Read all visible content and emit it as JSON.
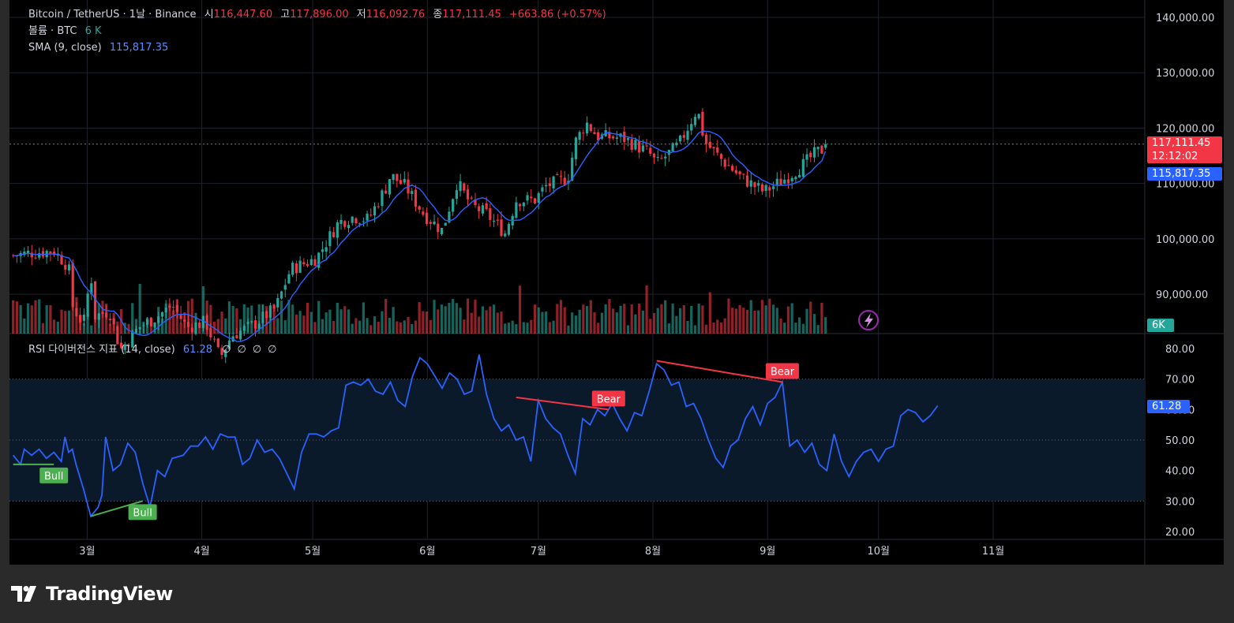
{
  "legend": {
    "symbol": "Bitcoin / TetherUS · 1날 · Binance",
    "open_label": "시",
    "open": "116,447.60",
    "high_label": "고",
    "high": "117,896.00",
    "low_label": "저",
    "low": "116,092.76",
    "close_label": "종",
    "close": "117,111.45",
    "change": "+663.86 (+0.57%)",
    "volume_label": "볼륨 · BTC",
    "volume_value": "6 K",
    "sma_label": "SMA (9, close)",
    "sma_value": "115,817.35",
    "rsi_label": "RSI 다이버전스 지표 (14, close)",
    "rsi_value": "61.28",
    "rsi_toggles": [
      "∅",
      "∅",
      "∅",
      "∅"
    ]
  },
  "price_tags": {
    "last_price": "117,111.45",
    "countdown": "12:12:02",
    "sma": "115,817.35",
    "volume": "6K",
    "rsi": "61.28"
  },
  "colors": {
    "up": "#26a69a",
    "down": "#f23645",
    "sma": "#2962ff",
    "rsi": "#2962ff",
    "bull": "#4caf50",
    "bear": "#f23645",
    "background": "#000000",
    "grid": "#1e222d"
  },
  "brand": {
    "name": "TradingView"
  },
  "chart_data": [
    {
      "type": "candlestick",
      "title": "Bitcoin / TetherUS · 1날 · Binance",
      "x_ticks": [
        "3월",
        "4월",
        "5월",
        "6월",
        "7월",
        "8월",
        "9월",
        "10월",
        "11월"
      ],
      "y_ticks": [
        "90,000.00",
        "100,000.00",
        "110,000.00",
        "120,000.00",
        "130,000.00",
        "140,000.00"
      ],
      "ylim": [
        84000,
        142000
      ],
      "grid": true,
      "series": [
        {
          "name": "SMA (9, close)",
          "type": "line"
        }
      ],
      "close_path": [
        [
          "02-09",
          97000
        ],
        [
          "02-14",
          97500
        ],
        [
          "02-20",
          97800
        ],
        [
          "02-24",
          95000
        ],
        [
          "02-25",
          88000
        ],
        [
          "02-28",
          84500
        ],
        [
          "03-02",
          94000
        ],
        [
          "03-03",
          86000
        ],
        [
          "03-07",
          87000
        ],
        [
          "03-10",
          80000
        ],
        [
          "03-15",
          84000
        ],
        [
          "03-20",
          86000
        ],
        [
          "03-24",
          88000
        ],
        [
          "03-28",
          84000
        ],
        [
          "04-02",
          85000
        ],
        [
          "04-06",
          78500
        ],
        [
          "04-09",
          82500
        ],
        [
          "04-15",
          84500
        ],
        [
          "04-21",
          87500
        ],
        [
          "04-25",
          94500
        ],
        [
          "05-02",
          96500
        ],
        [
          "05-08",
          103000
        ],
        [
          "05-12",
          104000
        ],
        [
          "05-16",
          103500
        ],
        [
          "05-21",
          109500
        ],
        [
          "05-22",
          111500
        ],
        [
          "05-26",
          109500
        ],
        [
          "05-31",
          104500
        ],
        [
          "06-05",
          101500
        ],
        [
          "06-09",
          110200
        ],
        [
          "06-13",
          106000
        ],
        [
          "06-17",
          104500
        ],
        [
          "06-22",
          101000
        ],
        [
          "06-25",
          107000
        ],
        [
          "06-30",
          107000
        ],
        [
          "07-03",
          109500
        ],
        [
          "07-09",
          111000
        ],
        [
          "07-11",
          117500
        ],
        [
          "07-14",
          121000
        ],
        [
          "07-17",
          118500
        ],
        [
          "07-24",
          118200
        ],
        [
          "07-31",
          115500
        ],
        [
          "08-02",
          113500
        ],
        [
          "08-08",
          117000
        ],
        [
          "08-13",
          123500
        ],
        [
          "08-15",
          117500
        ],
        [
          "08-20",
          114000
        ],
        [
          "08-25",
          111000
        ],
        [
          "08-31",
          108500
        ],
        [
          "09-05",
          110500
        ],
        [
          "09-10",
          113000
        ],
        [
          "09-14",
          115500
        ],
        [
          "09-17",
          116500
        ]
      ],
      "last": {
        "open": 116447.6,
        "high": 117896.0,
        "low": 116092.76,
        "close": 117111.45
      },
      "sma_last": 115817.35
    },
    {
      "type": "bar",
      "title": "볼륨 · BTC",
      "last_value": "6 K"
    },
    {
      "type": "line",
      "title": "RSI 다이버전스 지표 (14, close)",
      "y_ticks": [
        "20.00",
        "30.00",
        "40.00",
        "50.00",
        "60.00",
        "70.00",
        "80.00"
      ],
      "ylim": [
        17,
        82
      ],
      "overbought": 70,
      "oversold": 30,
      "last_value": 61.28,
      "series": [
        {
          "name": "RSI",
          "points": [
            [
              "02-09",
              45
            ],
            [
              "02-11",
              42
            ],
            [
              "02-12",
              47
            ],
            [
              "02-14",
              45
            ],
            [
              "02-16",
              47
            ],
            [
              "02-18",
              44
            ],
            [
              "02-20",
              46
            ],
            [
              "02-22",
              43
            ],
            [
              "02-23",
              51
            ],
            [
              "02-24",
              46
            ],
            [
              "02-25",
              47
            ],
            [
              "02-26",
              42
            ],
            [
              "02-28",
              34
            ],
            [
              "03-02",
              25
            ],
            [
              "03-04",
              28
            ],
            [
              "03-05",
              32
            ],
            [
              "03-06",
              51
            ],
            [
              "03-08",
              40
            ],
            [
              "03-10",
              42
            ],
            [
              "03-12",
              49
            ],
            [
              "03-14",
              46
            ],
            [
              "03-16",
              36
            ],
            [
              "03-18",
              28
            ],
            [
              "03-20",
              40
            ],
            [
              "03-22",
              38
            ],
            [
              "03-24",
              44
            ],
            [
              "03-27",
              45
            ],
            [
              "03-29",
              48
            ],
            [
              "03-31",
              48
            ],
            [
              "04-02",
              51
            ],
            [
              "04-04",
              47
            ],
            [
              "04-06",
              52
            ],
            [
              "04-08",
              51
            ],
            [
              "04-10",
              51
            ],
            [
              "04-12",
              42
            ],
            [
              "04-14",
              44
            ],
            [
              "04-16",
              50
            ],
            [
              "04-18",
              46
            ],
            [
              "04-20",
              47
            ],
            [
              "04-22",
              44
            ],
            [
              "04-24",
              39
            ],
            [
              "04-26",
              34
            ],
            [
              "04-28",
              46
            ],
            [
              "04-30",
              52
            ],
            [
              "05-02",
              52
            ],
            [
              "05-04",
              51
            ],
            [
              "05-06",
              53
            ],
            [
              "05-08",
              54
            ],
            [
              "05-10",
              68
            ],
            [
              "05-12",
              69
            ],
            [
              "05-14",
              68
            ],
            [
              "05-16",
              70
            ],
            [
              "05-18",
              66
            ],
            [
              "05-20",
              65
            ],
            [
              "05-22",
              69
            ],
            [
              "05-24",
              63
            ],
            [
              "05-26",
              61
            ],
            [
              "05-28",
              71
            ],
            [
              "05-30",
              77
            ],
            [
              "06-01",
              75
            ],
            [
              "06-03",
              71
            ],
            [
              "06-05",
              67
            ],
            [
              "06-07",
              72
            ],
            [
              "06-09",
              70
            ],
            [
              "06-11",
              65
            ],
            [
              "06-13",
              66
            ],
            [
              "06-15",
              78
            ],
            [
              "06-17",
              65
            ],
            [
              "06-19",
              57
            ],
            [
              "06-21",
              53
            ],
            [
              "06-23",
              55
            ],
            [
              "06-25",
              50
            ],
            [
              "06-27",
              51
            ],
            [
              "06-29",
              43
            ],
            [
              "07-01",
              63
            ],
            [
              "07-03",
              57
            ],
            [
              "07-05",
              54
            ],
            [
              "07-07",
              52
            ],
            [
              "07-09",
              45
            ],
            [
              "07-11",
              39
            ],
            [
              "07-13",
              57
            ],
            [
              "07-15",
              55
            ],
            [
              "07-17",
              60
            ],
            [
              "07-19",
              58
            ],
            [
              "07-21",
              62
            ],
            [
              "07-23",
              57
            ],
            [
              "07-25",
              53
            ],
            [
              "07-27",
              59
            ],
            [
              "07-29",
              58
            ],
            [
              "07-31",
              66
            ],
            [
              "08-02",
              75
            ],
            [
              "08-04",
              73
            ],
            [
              "08-06",
              68
            ],
            [
              "08-08",
              69
            ],
            [
              "08-10",
              61
            ],
            [
              "08-12",
              62
            ],
            [
              "08-14",
              57
            ],
            [
              "08-16",
              50
            ],
            [
              "08-18",
              44
            ],
            [
              "08-20",
              41
            ],
            [
              "08-22",
              48
            ],
            [
              "08-24",
              50
            ],
            [
              "08-26",
              57
            ],
            [
              "08-28",
              61
            ],
            [
              "08-30",
              55
            ],
            [
              "09-01",
              62
            ],
            [
              "09-03",
              64
            ],
            [
              "09-05",
              69
            ],
            [
              "09-07",
              48
            ],
            [
              "09-09",
              50
            ],
            [
              "09-11",
              46
            ],
            [
              "09-13",
              49
            ],
            [
              "09-15",
              42
            ],
            [
              "09-17",
              40
            ],
            [
              "09-19",
              52
            ],
            [
              "09-21",
              43
            ],
            [
              "09-23",
              38
            ],
            [
              "09-25",
              43
            ],
            [
              "09-27",
              46
            ],
            [
              "09-29",
              47
            ],
            [
              "10-01",
              43
            ],
            [
              "10-03",
              47
            ],
            [
              "10-05",
              48
            ],
            [
              "10-07",
              58
            ],
            [
              "10-09",
              60
            ],
            [
              "10-11",
              59
            ],
            [
              "10-13",
              56
            ],
            [
              "10-15",
              58
            ],
            [
              "10-17",
              61.28
            ]
          ]
        }
      ],
      "divergences": [
        {
          "label": "Bull",
          "from": [
            "02-09",
            42
          ],
          "to": [
            "02-20",
            42
          ]
        },
        {
          "label": "Bull",
          "from": [
            "03-02",
            25
          ],
          "to": [
            "03-16",
            30
          ]
        },
        {
          "label": "Bear",
          "from": [
            "06-25",
            64
          ],
          "to": [
            "07-20",
            60
          ]
        },
        {
          "label": "Bear",
          "from": [
            "08-02",
            76
          ],
          "to": [
            "09-05",
            69
          ]
        }
      ]
    }
  ]
}
